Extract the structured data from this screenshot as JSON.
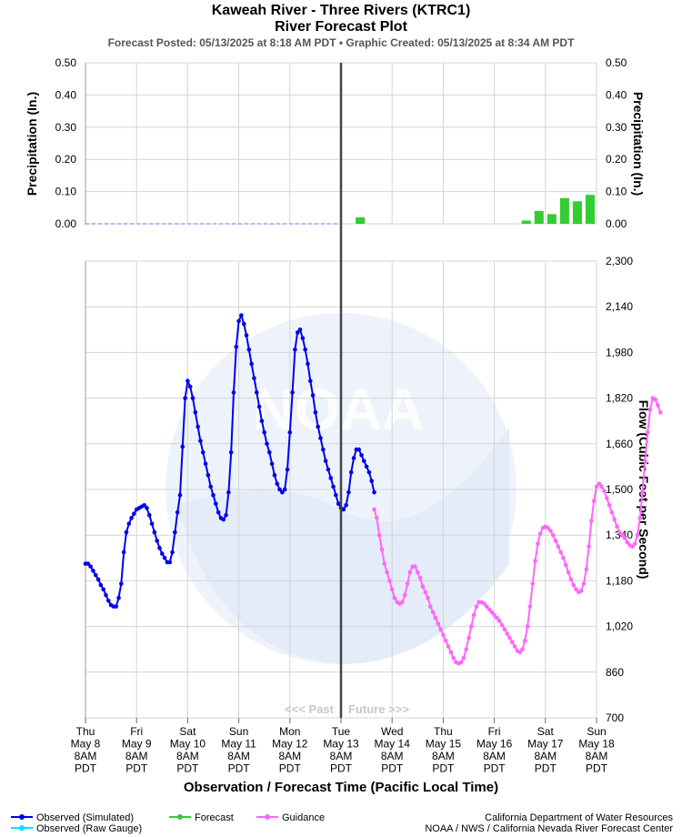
{
  "header": {
    "title": "Kaweah River - Three Rivers (KTRC1)",
    "subtitle": "River Forecast Plot",
    "posted": "Forecast Posted: 05/13/2025 at 8:18 AM PDT  •  Graphic Created: 05/13/2025 at 8:34 AM PDT"
  },
  "labels": {
    "precip_axis": "Precipitation (In.)",
    "flow_axis": "Flow (Cubic Feet per Second)",
    "x_axis": "Observation / Forecast Time (Pacific Local Time)",
    "past": "<<< Past",
    "future": "Future >>>"
  },
  "legend": [
    {
      "label": "Observed (Simulated)",
      "color": "#0000ee"
    },
    {
      "label": "Observed (Raw Gauge)",
      "color": "#00e5ff"
    },
    {
      "label": "Forecast",
      "color": "#33cc33"
    },
    {
      "label": "Guidance",
      "color": "#ff66ff"
    }
  ],
  "credits": {
    "line1": "California Department of Water Resources",
    "line2": "NOAA / NWS / California Nevada River Forecast Center"
  },
  "chart_data": [
    {
      "type": "bar",
      "title": "",
      "ylabel": "Precipitation (In.)",
      "ylim": [
        0,
        0.5
      ],
      "yticks": [
        "0.00",
        "0.10",
        "0.20",
        "0.30",
        "0.40",
        "0.50"
      ],
      "grid": true,
      "x_unit": "days after Thu May 8 8AM PDT",
      "bars": [
        {
          "x": 5.25,
          "value": 0.02
        },
        {
          "x": 8.5,
          "value": 0.01
        },
        {
          "x": 8.75,
          "value": 0.04
        },
        {
          "x": 9.0,
          "value": 0.03
        },
        {
          "x": 9.25,
          "value": 0.08
        },
        {
          "x": 9.5,
          "value": 0.07
        },
        {
          "x": 9.75,
          "value": 0.09
        }
      ]
    },
    {
      "type": "line",
      "ylabel": "Flow (Cubic Feet per Second)",
      "xlabel": "Observation / Forecast Time (Pacific Local Time)",
      "ylim": [
        700,
        2300
      ],
      "yticks": [
        "2,300",
        "2,140",
        "1,980",
        "1,820",
        "1,660",
        "1,500",
        "1,340",
        "1,180",
        "1,020",
        "860",
        "700"
      ],
      "grid": true,
      "now_x": 5,
      "x_ticks": [
        {
          "day": "Thu",
          "date": "May 8",
          "time": "8AM",
          "tz": "PDT"
        },
        {
          "day": "Fri",
          "date": "May 9",
          "time": "8AM",
          "tz": "PDT"
        },
        {
          "day": "Sat",
          "date": "May 10",
          "time": "8AM",
          "tz": "PDT"
        },
        {
          "day": "Sun",
          "date": "May 11",
          "time": "8AM",
          "tz": "PDT"
        },
        {
          "day": "Mon",
          "date": "May 12",
          "time": "8AM",
          "tz": "PDT"
        },
        {
          "day": "Tue",
          "date": "May 13",
          "time": "8AM",
          "tz": "PDT"
        },
        {
          "day": "Wed",
          "date": "May 14",
          "time": "8AM",
          "tz": "PDT"
        },
        {
          "day": "Thu",
          "date": "May 15",
          "time": "8AM",
          "tz": "PDT"
        },
        {
          "day": "Fri",
          "date": "May 16",
          "time": "8AM",
          "tz": "PDT"
        },
        {
          "day": "Sat",
          "date": "May 17",
          "time": "8AM",
          "tz": "PDT"
        },
        {
          "day": "Sun",
          "date": "May 18",
          "time": "8AM",
          "tz": "PDT"
        }
      ],
      "series": [
        {
          "name": "Observed (Simulated)",
          "color": "#0000ee",
          "points": [
            [
              0.0,
              1240
            ],
            [
              0.05,
              1240
            ],
            [
              0.1,
              1230
            ],
            [
              0.15,
              1215
            ],
            [
              0.2,
              1200
            ],
            [
              0.25,
              1185
            ],
            [
              0.3,
              1165
            ],
            [
              0.35,
              1150
            ],
            [
              0.4,
              1130
            ],
            [
              0.45,
              1110
            ],
            [
              0.5,
              1095
            ],
            [
              0.55,
              1090
            ],
            [
              0.6,
              1090
            ],
            [
              0.65,
              1120
            ],
            [
              0.7,
              1170
            ],
            [
              0.75,
              1280
            ],
            [
              0.8,
              1350
            ],
            [
              0.85,
              1380
            ],
            [
              0.9,
              1400
            ],
            [
              0.95,
              1415
            ],
            [
              1.0,
              1430
            ],
            [
              1.05,
              1435
            ],
            [
              1.1,
              1440
            ],
            [
              1.15,
              1445
            ],
            [
              1.2,
              1435
            ],
            [
              1.25,
              1410
            ],
            [
              1.3,
              1380
            ],
            [
              1.35,
              1350
            ],
            [
              1.4,
              1320
            ],
            [
              1.45,
              1295
            ],
            [
              1.5,
              1275
            ],
            [
              1.55,
              1260
            ],
            [
              1.6,
              1245
            ],
            [
              1.65,
              1245
            ],
            [
              1.7,
              1280
            ],
            [
              1.75,
              1350
            ],
            [
              1.8,
              1420
            ],
            [
              1.85,
              1480
            ],
            [
              1.9,
              1650
            ],
            [
              1.95,
              1820
            ],
            [
              2.0,
              1880
            ],
            [
              2.05,
              1860
            ],
            [
              2.1,
              1820
            ],
            [
              2.15,
              1770
            ],
            [
              2.2,
              1720
            ],
            [
              2.25,
              1670
            ],
            [
              2.3,
              1630
            ],
            [
              2.35,
              1590
            ],
            [
              2.4,
              1550
            ],
            [
              2.45,
              1510
            ],
            [
              2.5,
              1480
            ],
            [
              2.55,
              1450
            ],
            [
              2.6,
              1420
            ],
            [
              2.65,
              1400
            ],
            [
              2.7,
              1395
            ],
            [
              2.75,
              1410
            ],
            [
              2.8,
              1490
            ],
            [
              2.85,
              1630
            ],
            [
              2.9,
              1840
            ],
            [
              2.95,
              2000
            ],
            [
              3.0,
              2090
            ],
            [
              3.05,
              2110
            ],
            [
              3.1,
              2080
            ],
            [
              3.15,
              2040
            ],
            [
              3.2,
              1990
            ],
            [
              3.25,
              1940
            ],
            [
              3.3,
              1890
            ],
            [
              3.35,
              1840
            ],
            [
              3.4,
              1790
            ],
            [
              3.45,
              1740
            ],
            [
              3.5,
              1700
            ],
            [
              3.55,
              1660
            ],
            [
              3.6,
              1630
            ],
            [
              3.65,
              1590
            ],
            [
              3.7,
              1550
            ],
            [
              3.75,
              1520
            ],
            [
              3.8,
              1500
            ],
            [
              3.85,
              1490
            ],
            [
              3.9,
              1500
            ],
            [
              3.95,
              1570
            ],
            [
              4.0,
              1700
            ],
            [
              4.05,
              1840
            ],
            [
              4.1,
              1990
            ],
            [
              4.15,
              2050
            ],
            [
              4.2,
              2060
            ],
            [
              4.25,
              2030
            ],
            [
              4.3,
              1990
            ],
            [
              4.35,
              1940
            ],
            [
              4.4,
              1880
            ],
            [
              4.45,
              1830
            ],
            [
              4.5,
              1770
            ],
            [
              4.55,
              1720
            ],
            [
              4.6,
              1680
            ],
            [
              4.65,
              1640
            ],
            [
              4.7,
              1600
            ],
            [
              4.75,
              1570
            ],
            [
              4.8,
              1540
            ],
            [
              4.85,
              1510
            ],
            [
              4.9,
              1480
            ],
            [
              4.95,
              1450
            ],
            [
              5.0,
              1435
            ],
            [
              5.05,
              1430
            ],
            [
              5.1,
              1445
            ],
            [
              5.15,
              1490
            ],
            [
              5.2,
              1560
            ],
            [
              5.25,
              1610
            ],
            [
              5.3,
              1640
            ],
            [
              5.35,
              1640
            ],
            [
              5.4,
              1620
            ],
            [
              5.45,
              1600
            ],
            [
              5.5,
              1580
            ],
            [
              5.55,
              1560
            ],
            [
              5.6,
              1530
            ],
            [
              5.65,
              1490
            ]
          ]
        },
        {
          "name": "Guidance",
          "color": "#ff66ff",
          "points": [
            [
              5.65,
              1430
            ],
            [
              5.7,
              1400
            ],
            [
              5.75,
              1340
            ],
            [
              5.8,
              1290
            ],
            [
              5.85,
              1240
            ],
            [
              5.9,
              1210
            ],
            [
              5.95,
              1180
            ],
            [
              6.0,
              1150
            ],
            [
              6.05,
              1120
            ],
            [
              6.1,
              1105
            ],
            [
              6.15,
              1100
            ],
            [
              6.2,
              1105
            ],
            [
              6.25,
              1130
            ],
            [
              6.3,
              1170
            ],
            [
              6.35,
              1210
            ],
            [
              6.4,
              1230
            ],
            [
              6.45,
              1230
            ],
            [
              6.5,
              1210
            ],
            [
              6.55,
              1190
            ],
            [
              6.6,
              1160
            ],
            [
              6.65,
              1140
            ],
            [
              6.7,
              1120
            ],
            [
              6.75,
              1090
            ],
            [
              6.8,
              1070
            ],
            [
              6.85,
              1050
            ],
            [
              6.9,
              1030
            ],
            [
              6.95,
              1010
            ],
            [
              7.0,
              990
            ],
            [
              7.05,
              970
            ],
            [
              7.1,
              950
            ],
            [
              7.15,
              930
            ],
            [
              7.2,
              910
            ],
            [
              7.25,
              895
            ],
            [
              7.3,
              890
            ],
            [
              7.35,
              895
            ],
            [
              7.4,
              910
            ],
            [
              7.45,
              940
            ],
            [
              7.5,
              980
            ],
            [
              7.55,
              1020
            ],
            [
              7.6,
              1060
            ],
            [
              7.65,
              1090
            ],
            [
              7.7,
              1105
            ],
            [
              7.75,
              1105
            ],
            [
              7.8,
              1100
            ],
            [
              7.85,
              1090
            ],
            [
              7.9,
              1080
            ],
            [
              7.95,
              1070
            ],
            [
              8.0,
              1060
            ],
            [
              8.05,
              1050
            ],
            [
              8.1,
              1040
            ],
            [
              8.15,
              1025
            ],
            [
              8.2,
              1010
            ],
            [
              8.25,
              995
            ],
            [
              8.3,
              980
            ],
            [
              8.35,
              965
            ],
            [
              8.4,
              950
            ],
            [
              8.45,
              935
            ],
            [
              8.5,
              930
            ],
            [
              8.55,
              940
            ],
            [
              8.6,
              970
            ],
            [
              8.65,
              1020
            ],
            [
              8.7,
              1090
            ],
            [
              8.75,
              1170
            ],
            [
              8.8,
              1250
            ],
            [
              8.85,
              1310
            ],
            [
              8.9,
              1345
            ],
            [
              8.95,
              1365
            ],
            [
              9.0,
              1370
            ],
            [
              9.05,
              1365
            ],
            [
              9.1,
              1355
            ],
            [
              9.15,
              1340
            ],
            [
              9.2,
              1320
            ],
            [
              9.25,
              1300
            ],
            [
              9.3,
              1280
            ],
            [
              9.35,
              1260
            ],
            [
              9.4,
              1235
            ],
            [
              9.45,
              1210
            ],
            [
              9.5,
              1185
            ],
            [
              9.55,
              1165
            ],
            [
              9.6,
              1150
            ],
            [
              9.65,
              1140
            ],
            [
              9.7,
              1145
            ],
            [
              9.75,
              1170
            ],
            [
              9.8,
              1220
            ],
            [
              9.85,
              1300
            ],
            [
              9.9,
              1390
            ],
            [
              9.95,
              1460
            ],
            [
              10.0,
              1510
            ],
            [
              10.05,
              1520
            ],
            [
              10.1,
              1510
            ],
            [
              10.15,
              1495
            ],
            [
              10.2,
              1470
            ],
            [
              10.25,
              1445
            ],
            [
              10.3,
              1420
            ],
            [
              10.35,
              1395
            ],
            [
              10.4,
              1370
            ],
            [
              10.45,
              1350
            ],
            [
              10.5,
              1340
            ],
            [
              10.55,
              1330
            ],
            [
              10.6,
              1315
            ],
            [
              10.65,
              1305
            ],
            [
              10.7,
              1300
            ],
            [
              10.75,
              1310
            ],
            [
              10.8,
              1340
            ],
            [
              10.85,
              1400
            ],
            [
              10.9,
              1490
            ],
            [
              10.95,
              1600
            ],
            [
              11.0,
              1700
            ],
            [
              11.05,
              1780
            ],
            [
              11.1,
              1820
            ],
            [
              11.15,
              1815
            ],
            [
              11.2,
              1795
            ],
            [
              11.25,
              1770
            ]
          ]
        }
      ]
    }
  ]
}
